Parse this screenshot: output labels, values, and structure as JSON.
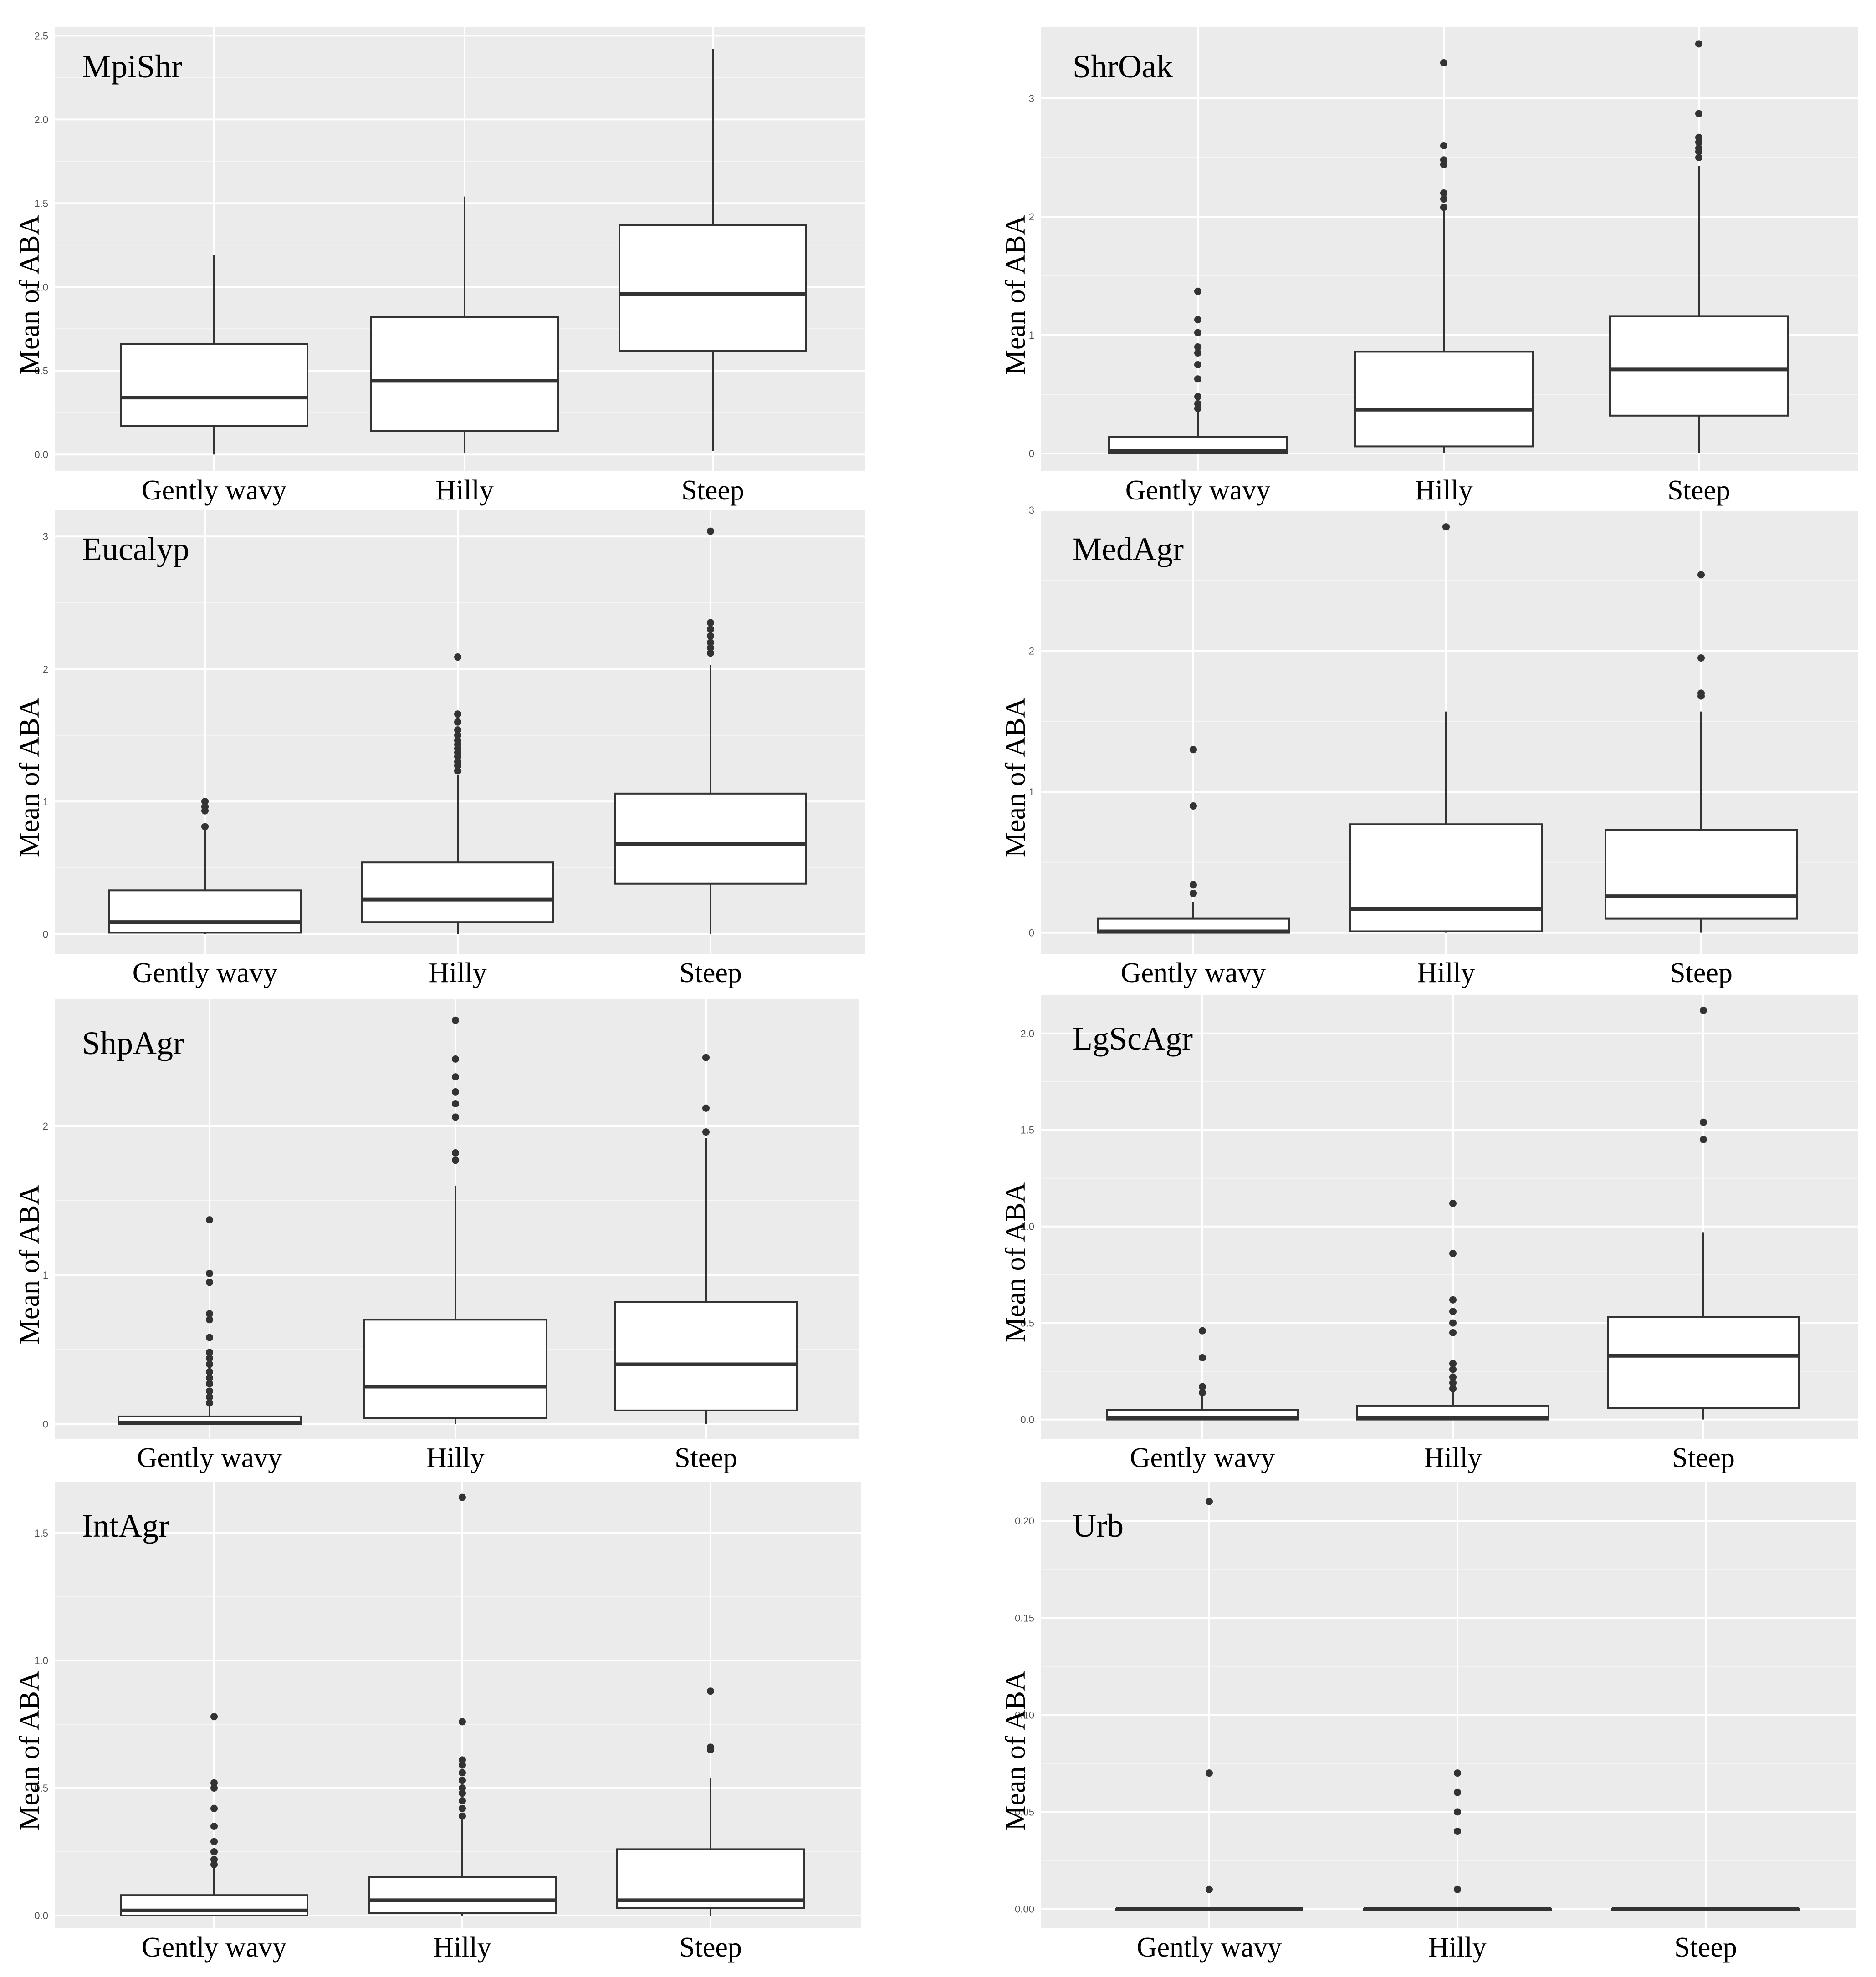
{
  "chart_data": [
    {
      "type": "box",
      "title": "MpiShr",
      "ylabel": "Mean of ABA",
      "xlabel": "",
      "categories": [
        "Gently wavy",
        "Hilly",
        "Steep"
      ],
      "ylim": [
        -0.1,
        2.55
      ],
      "yticks": [
        0.0,
        0.5,
        1.0,
        1.5,
        2.0,
        2.5
      ],
      "ytick_labels": [
        "0.0",
        "0.5",
        "1.0",
        "1.5",
        "2.0",
        "2.5"
      ],
      "boxes": [
        {
          "min": 0.0,
          "q1": 0.17,
          "median": 0.34,
          "q3": 0.66,
          "max": 1.19,
          "outliers": []
        },
        {
          "min": 0.01,
          "q1": 0.14,
          "median": 0.44,
          "q3": 0.82,
          "max": 1.54,
          "outliers": []
        },
        {
          "min": 0.02,
          "q1": 0.62,
          "median": 0.96,
          "q3": 1.37,
          "max": 2.42,
          "outliers": []
        }
      ]
    },
    {
      "type": "box",
      "title": "ShrOak",
      "ylabel": "Mean of ABA",
      "xlabel": "",
      "categories": [
        "Gently wavy",
        "Hilly",
        "Steep"
      ],
      "ylim": [
        -0.15,
        3.6
      ],
      "yticks": [
        0,
        1,
        2,
        3
      ],
      "ytick_labels": [
        "0",
        "1",
        "2",
        "3"
      ],
      "boxes": [
        {
          "min": 0.0,
          "q1": 0.0,
          "median": 0.02,
          "q3": 0.14,
          "max": 0.38,
          "outliers": [
            0.38,
            0.42,
            0.48,
            0.63,
            0.75,
            0.85,
            0.9,
            1.02,
            1.13,
            1.37
          ]
        },
        {
          "min": 0.0,
          "q1": 0.06,
          "median": 0.37,
          "q3": 0.86,
          "max": 2.05,
          "outliers": [
            2.08,
            2.15,
            2.2,
            2.44,
            2.48,
            2.6,
            3.3
          ]
        },
        {
          "min": 0.0,
          "q1": 0.32,
          "median": 0.71,
          "q3": 1.16,
          "max": 2.43,
          "outliers": [
            2.5,
            2.55,
            2.58,
            2.63,
            2.67,
            2.87,
            3.46
          ]
        }
      ]
    },
    {
      "type": "box",
      "title": "Eucalyp",
      "ylabel": "Mean of ABA",
      "xlabel": "",
      "categories": [
        "Gently wavy",
        "Hilly",
        "Steep"
      ],
      "ylim": [
        -0.15,
        3.2
      ],
      "yticks": [
        0,
        1,
        2,
        3
      ],
      "ytick_labels": [
        "0",
        "1",
        "2",
        "3"
      ],
      "boxes": [
        {
          "min": 0.0,
          "q1": 0.01,
          "median": 0.09,
          "q3": 0.33,
          "max": 0.8,
          "outliers": [
            0.81,
            0.93,
            0.96,
            1.0
          ]
        },
        {
          "min": 0.0,
          "q1": 0.09,
          "median": 0.26,
          "q3": 0.54,
          "max": 1.2,
          "outliers": [
            1.23,
            1.27,
            1.3,
            1.34,
            1.37,
            1.4,
            1.43,
            1.46,
            1.5,
            1.54,
            1.6,
            1.66,
            2.09
          ]
        },
        {
          "min": 0.0,
          "q1": 0.38,
          "median": 0.68,
          "q3": 1.06,
          "max": 2.03,
          "outliers": [
            2.12,
            2.16,
            2.2,
            2.25,
            2.3,
            2.35,
            3.04
          ]
        }
      ]
    },
    {
      "type": "box",
      "title": "MedAgr",
      "ylabel": "Mean of ABA",
      "xlabel": "",
      "categories": [
        "Gently wavy",
        "Hilly",
        "Steep"
      ],
      "ylim": [
        -0.15,
        3.0
      ],
      "yticks": [
        0,
        1,
        2,
        3
      ],
      "ytick_labels": [
        "0",
        "1",
        "2",
        "3"
      ],
      "boxes": [
        {
          "min": 0.0,
          "q1": 0.0,
          "median": 0.01,
          "q3": 0.1,
          "max": 0.22,
          "outliers": [
            0.28,
            0.34,
            0.9,
            1.3
          ]
        },
        {
          "min": 0.0,
          "q1": 0.01,
          "median": 0.17,
          "q3": 0.77,
          "max": 1.57,
          "outliers": [
            2.88
          ]
        },
        {
          "min": 0.0,
          "q1": 0.1,
          "median": 0.26,
          "q3": 0.73,
          "max": 1.57,
          "outliers": [
            1.68,
            1.7,
            1.95,
            2.54
          ]
        }
      ]
    },
    {
      "type": "box",
      "title": "ShpAgr",
      "ylabel": "Mean of ABA",
      "xlabel": "",
      "categories": [
        "Gently wavy",
        "Hilly",
        "Steep"
      ],
      "ylim": [
        -0.1,
        2.85
      ],
      "yticks": [
        0,
        1,
        2
      ],
      "ytick_labels": [
        "0",
        "1",
        "2"
      ],
      "boxes": [
        {
          "min": 0.0,
          "q1": 0.0,
          "median": 0.01,
          "q3": 0.05,
          "max": 0.12,
          "outliers": [
            0.14,
            0.18,
            0.22,
            0.27,
            0.31,
            0.35,
            0.4,
            0.44,
            0.48,
            0.58,
            0.7,
            0.74,
            0.95,
            1.01,
            1.37
          ]
        },
        {
          "min": 0.0,
          "q1": 0.04,
          "median": 0.25,
          "q3": 0.7,
          "max": 1.6,
          "outliers": [
            1.77,
            1.82,
            2.06,
            2.15,
            2.23,
            2.33,
            2.45,
            2.71
          ]
        },
        {
          "min": 0.0,
          "q1": 0.09,
          "median": 0.4,
          "q3": 0.82,
          "max": 1.92,
          "outliers": [
            1.96,
            2.12,
            2.46
          ]
        }
      ]
    },
    {
      "type": "box",
      "title": "LgScAgr",
      "ylabel": "Mean of ABA",
      "xlabel": "",
      "categories": [
        "Gently wavy",
        "Hilly",
        "Steep"
      ],
      "ylim": [
        -0.1,
        2.2
      ],
      "yticks": [
        0.0,
        0.5,
        1.0,
        1.5,
        2.0
      ],
      "ytick_labels": [
        "0.0",
        "0.5",
        "1.0",
        "1.5",
        "2.0"
      ],
      "boxes": [
        {
          "min": 0.0,
          "q1": 0.0,
          "median": 0.01,
          "q3": 0.05,
          "max": 0.12,
          "outliers": [
            0.14,
            0.17,
            0.32,
            0.46
          ]
        },
        {
          "min": 0.0,
          "q1": 0.0,
          "median": 0.01,
          "q3": 0.07,
          "max": 0.15,
          "outliers": [
            0.16,
            0.19,
            0.22,
            0.26,
            0.29,
            0.45,
            0.5,
            0.56,
            0.62,
            0.86,
            1.12
          ]
        },
        {
          "min": 0.0,
          "q1": 0.06,
          "median": 0.33,
          "q3": 0.53,
          "max": 0.97,
          "outliers": [
            1.45,
            1.54,
            2.12
          ]
        }
      ]
    },
    {
      "type": "box",
      "title": "IntAgr",
      "ylabel": "Mean of ABA",
      "xlabel": "",
      "categories": [
        "Gently wavy",
        "Hilly",
        "Steep"
      ],
      "ylim": [
        -0.05,
        1.7
      ],
      "yticks": [
        0.0,
        0.5,
        1.0,
        1.5
      ],
      "ytick_labels": [
        "0.0",
        "0.5",
        "1.0",
        "1.5"
      ],
      "boxes": [
        {
          "min": 0.0,
          "q1": 0.0,
          "median": 0.02,
          "q3": 0.08,
          "max": 0.19,
          "outliers": [
            0.2,
            0.22,
            0.25,
            0.29,
            0.35,
            0.42,
            0.5,
            0.52,
            0.78
          ]
        },
        {
          "min": 0.0,
          "q1": 0.01,
          "median": 0.06,
          "q3": 0.15,
          "max": 0.38,
          "outliers": [
            0.39,
            0.42,
            0.45,
            0.48,
            0.5,
            0.53,
            0.56,
            0.59,
            0.61,
            0.76,
            1.64
          ]
        },
        {
          "min": 0.0,
          "q1": 0.03,
          "median": 0.06,
          "q3": 0.26,
          "max": 0.54,
          "outliers": [
            0.65,
            0.66,
            0.88
          ]
        }
      ]
    },
    {
      "type": "box",
      "title": "Urb",
      "ylabel": "Mean of ABA",
      "xlabel": "",
      "categories": [
        "Gently wavy",
        "Hilly",
        "Steep"
      ],
      "ylim": [
        -0.01,
        0.22
      ],
      "yticks": [
        0.0,
        0.05,
        0.1,
        0.15,
        0.2
      ],
      "ytick_labels": [
        "0.00",
        "0.05",
        "0.10",
        "0.15",
        "0.20"
      ],
      "boxes": [
        {
          "min": 0.0,
          "q1": 0.0,
          "median": 0.0,
          "q3": 0.0,
          "max": 0.0,
          "outliers": [
            0.01,
            0.07,
            0.21
          ]
        },
        {
          "min": 0.0,
          "q1": 0.0,
          "median": 0.0,
          "q3": 0.0,
          "max": 0.0,
          "outliers": [
            0.01,
            0.04,
            0.05,
            0.06,
            0.07
          ]
        },
        {
          "min": 0.0,
          "q1": 0.0,
          "median": 0.0,
          "q3": 0.0,
          "max": 0.0,
          "outliers": []
        }
      ]
    }
  ]
}
